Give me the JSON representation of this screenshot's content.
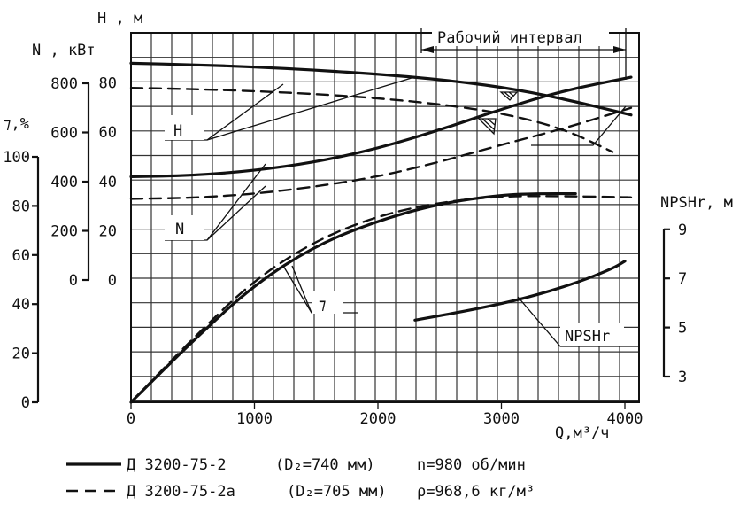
{
  "chart_data": {
    "type": "line",
    "title": "",
    "x_axis": {
      "label": "Q,м³/ч",
      "range": [
        0,
        4000
      ],
      "ticks": [
        "0",
        "1000",
        "2000",
        "3000",
        "4000"
      ]
    },
    "axes_labels": {
      "H": "H , м",
      "N": "N , кВт",
      "eta": "⁊,%",
      "npsh": "NPSHr, м"
    },
    "tick_labels": {
      "H": [
        "80",
        "60",
        "40",
        "20",
        "0"
      ],
      "N": [
        "800",
        "600",
        "400",
        "200",
        "0"
      ],
      "eta": [
        "100",
        "80",
        "60",
        "40",
        "20",
        "0"
      ],
      "npsh": [
        "9",
        "7",
        "5",
        "3"
      ]
    },
    "working_interval": {
      "label": "Рабочий интервал",
      "range": [
        2350,
        4050
      ]
    },
    "curve_labels": {
      "H": "H",
      "N": "N",
      "eta": "⁊",
      "npsh": "NPSHr"
    },
    "series": [
      {
        "name": "Д 3200-75-2",
        "style": "solid",
        "axis": "H",
        "x": [
          0,
          500,
          1000,
          1500,
          2000,
          2500,
          3000,
          3500,
          4050
        ],
        "y": [
          88,
          87.4,
          86.5,
          85.2,
          83.6,
          81.4,
          78.4,
          73.6,
          67
        ]
      },
      {
        "name": "Д 3200-75-2а",
        "style": "dashed",
        "axis": "H",
        "x": [
          0,
          500,
          1000,
          1500,
          2000,
          2500,
          3000,
          3500,
          3900
        ],
        "y": [
          78,
          77.5,
          76.7,
          75.5,
          73.8,
          71.4,
          67.8,
          61.5,
          52
        ]
      },
      {
        "name": "Д 3200-75-2",
        "style": "solid",
        "axis": "N",
        "x": [
          0,
          500,
          1000,
          1500,
          2000,
          2500,
          3000,
          3500,
          4050
        ],
        "y": [
          420,
          425,
          445,
          480,
          535,
          610,
          695,
          770,
          825
        ]
      },
      {
        "name": "Д 3200-75-2а",
        "style": "dashed",
        "axis": "N",
        "x": [
          0,
          500,
          1000,
          1500,
          2000,
          2500,
          3000,
          3500,
          4050
        ],
        "y": [
          330,
          334,
          350,
          380,
          420,
          480,
          550,
          615,
          700
        ]
      },
      {
        "name": "Д 3200-75-2",
        "style": "solid",
        "axis": "eta",
        "x": [
          0,
          500,
          1000,
          1500,
          2000,
          2500,
          3000,
          3300,
          3600
        ],
        "y": [
          0,
          25,
          48,
          64,
          74,
          81,
          84.5,
          85,
          85
        ]
      },
      {
        "name": "Д 3200-75-2а",
        "style": "dashed",
        "axis": "eta",
        "x": [
          0,
          500,
          1000,
          1500,
          2000,
          2500,
          3000,
          3500,
          4050
        ],
        "y": [
          0,
          26,
          50,
          66,
          76,
          81.5,
          84,
          84,
          83.5
        ]
      },
      {
        "name": "Д 3200-75-2",
        "style": "solid",
        "axis": "npsh",
        "x": [
          2300,
          2800,
          3200,
          3600,
          3900,
          4000
        ],
        "y": [
          5.3,
          5.75,
          6.2,
          6.8,
          7.4,
          7.7
        ]
      }
    ],
    "legend": [
      {
        "style": "solid",
        "model": "Д 3200-75-2",
        "diameter": "(D₂=740 мм)",
        "param": "n=980 об/мин"
      },
      {
        "style": "dashed",
        "model": "Д 3200-75-2а",
        "diameter": "(D₂=705 мм)",
        "param": "ρ=968,6 кг/м³"
      }
    ]
  }
}
